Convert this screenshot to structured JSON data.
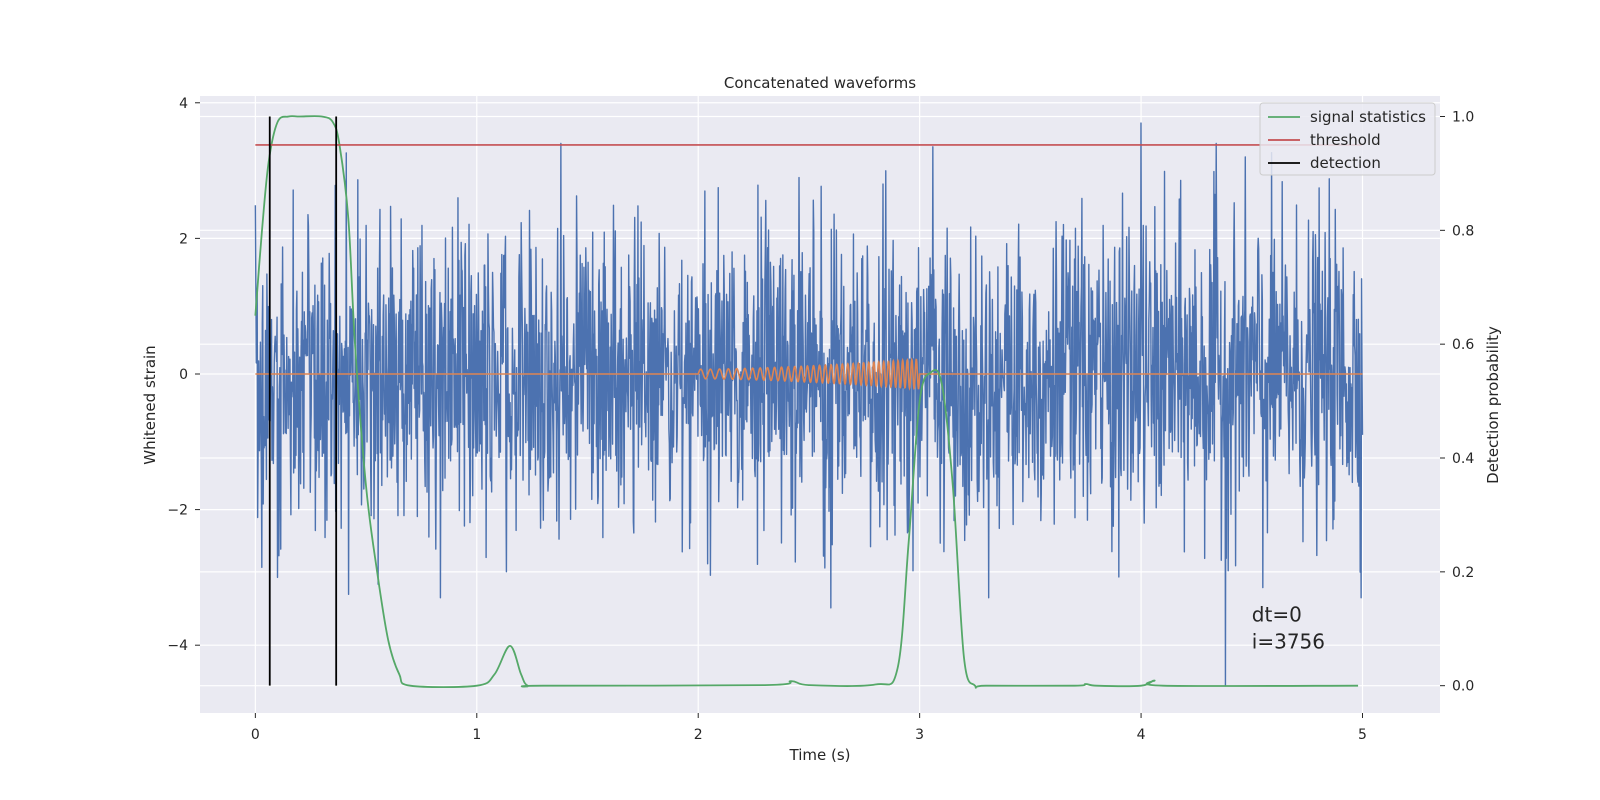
{
  "chart_data": {
    "type": "line",
    "title": "Concatenated waveforms",
    "xlabel": "Time (s)",
    "ylabel_left": "Whitened strain",
    "ylabel_right": "Detection probability",
    "xlim": [
      -0.25,
      5.35
    ],
    "ylim_left": [
      -5.0,
      4.1
    ],
    "ylim_right": [
      -0.048,
      1.036
    ],
    "x_ticks": [
      0,
      1,
      2,
      3,
      4,
      5
    ],
    "y_ticks_left": [
      4,
      2,
      0,
      -2,
      -4
    ],
    "y_ticks_right": [
      "1.0",
      "0.8",
      "0.6",
      "0.4",
      "0.2",
      "0.0"
    ],
    "y_tick_values_right": [
      1.0,
      0.8,
      0.6,
      0.4,
      0.2,
      0.0
    ],
    "grid": true,
    "legend_position": "top-right",
    "series": [
      {
        "name": "",
        "color": "#4C72B0",
        "axis": "left",
        "description_kind": "whitened noise strain, approx. gaussian",
        "x_range": [
          0,
          5
        ],
        "sigma": 1.1,
        "extremes": [
          {
            "x": 1.38,
            "y": 3.4
          },
          {
            "x": 3.06,
            "y": 3.35
          },
          {
            "x": 4.0,
            "y": 3.7
          },
          {
            "x": 4.34,
            "y": 3.4
          },
          {
            "x": 4.38,
            "y": -4.6
          },
          {
            "x": 2.6,
            "y": -3.45
          },
          {
            "x": 0.1,
            "y": -3.0
          },
          {
            "x": 0.42,
            "y": -3.25
          },
          {
            "x": 4.55,
            "y": -3.15
          }
        ]
      },
      {
        "name": "",
        "color": "#DD8452",
        "axis": "left",
        "description_kind": "injected chirp waveform",
        "x_range": [
          0,
          5
        ],
        "chirp_start": 2.0,
        "chirp_end": 3.0,
        "amplitude_start": 0.07,
        "amplitude_end": 0.22
      },
      {
        "name": "signal statistics",
        "color": "#55A868",
        "axis": "right",
        "x": [
          0,
          0.03,
          0.06,
          0.1,
          0.15,
          0.2,
          0.3,
          0.35,
          0.38,
          0.42,
          0.45,
          0.5,
          0.55,
          0.6,
          0.65,
          0.7,
          1.0,
          1.08,
          1.15,
          1.2,
          1.23,
          1.3,
          2.3,
          2.42,
          2.5,
          2.8,
          2.9,
          2.95,
          3.0,
          3.05,
          3.1,
          3.15,
          3.2,
          3.25,
          3.3,
          3.7,
          3.75,
          3.8,
          4.0,
          4.06,
          4.1,
          4.98
        ],
        "y": [
          0.65,
          0.8,
          0.92,
          0.99,
          1.0,
          1.0,
          1.0,
          0.99,
          0.95,
          0.82,
          0.6,
          0.35,
          0.2,
          0.08,
          0.02,
          0.0,
          0.0,
          0.02,
          0.07,
          0.02,
          0.0,
          0.0,
          0.001,
          0.008,
          0.001,
          0.002,
          0.03,
          0.25,
          0.5,
          0.55,
          0.53,
          0.35,
          0.05,
          0.0,
          0.0,
          0.0,
          0.003,
          0.0,
          0.0,
          0.009,
          0.0,
          0.0
        ]
      },
      {
        "name": "threshold",
        "color": "#C44E52",
        "axis": "right",
        "x": [
          0,
          5
        ],
        "y": [
          0.95,
          0.95
        ]
      },
      {
        "name": "detection",
        "color": "#000000",
        "axis": "right",
        "vertical_lines_x": [
          0.065,
          0.365
        ],
        "y_range": [
          0.0,
          1.0
        ]
      }
    ],
    "annotations": [
      {
        "text": "dt=0",
        "x": 4.5,
        "y": -3.65
      },
      {
        "text": "i=3756",
        "x": 4.5,
        "y": -4.05
      }
    ],
    "legend": [
      {
        "label": "signal statistics",
        "color": "#55A868"
      },
      {
        "label": "threshold",
        "color": "#C44E52"
      },
      {
        "label": "detection",
        "color": "#000000"
      }
    ]
  }
}
